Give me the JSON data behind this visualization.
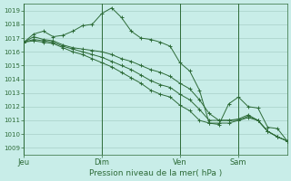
{
  "title": "",
  "xlabel": "Pression niveau de la mer( hPa )",
  "ylabel": "",
  "bg_color": "#c8ede8",
  "grid_color": "#a8cfc8",
  "line_color": "#2d6b38",
  "ylim": [
    1008.5,
    1019.5
  ],
  "yticks": [
    1009,
    1010,
    1011,
    1012,
    1013,
    1014,
    1015,
    1016,
    1017,
    1018,
    1019
  ],
  "xtick_labels": [
    "Jeu",
    "Dim",
    "Ven",
    "Sam"
  ],
  "xtick_positions": [
    0,
    8,
    16,
    22
  ],
  "total_points": 28,
  "series": [
    [
      1016.7,
      1017.3,
      1017.5,
      1017.1,
      1017.2,
      1017.5,
      1017.9,
      1018.0,
      1018.8,
      1019.2,
      1018.5,
      1017.5,
      1017.0,
      1016.9,
      1016.7,
      1016.4,
      1015.2,
      1014.6,
      1013.2,
      1010.8,
      1010.7,
      1012.2,
      1012.7,
      1012.0,
      1011.9,
      1010.5,
      1010.4,
      1009.5
    ],
    [
      1016.7,
      1017.1,
      1016.9,
      1016.8,
      1016.5,
      1016.3,
      1016.2,
      1016.1,
      1016.0,
      1015.8,
      1015.5,
      1015.3,
      1015.0,
      1014.7,
      1014.5,
      1014.2,
      1013.7,
      1013.3,
      1012.5,
      1011.5,
      1011.0,
      1011.0,
      1011.1,
      1011.4,
      1011.0,
      1010.2,
      1009.8,
      1009.5
    ],
    [
      1016.7,
      1016.9,
      1016.8,
      1016.7,
      1016.4,
      1016.2,
      1016.0,
      1015.8,
      1015.6,
      1015.3,
      1015.0,
      1014.7,
      1014.3,
      1013.9,
      1013.6,
      1013.4,
      1012.9,
      1012.5,
      1011.8,
      1011.0,
      1011.0,
      1011.0,
      1011.0,
      1011.3,
      1011.0,
      1010.2,
      1009.8,
      1009.5
    ],
    [
      1016.7,
      1016.8,
      1016.7,
      1016.6,
      1016.3,
      1016.0,
      1015.8,
      1015.5,
      1015.2,
      1014.9,
      1014.5,
      1014.1,
      1013.7,
      1013.2,
      1012.9,
      1012.7,
      1012.1,
      1011.7,
      1011.0,
      1010.8,
      1010.8,
      1010.8,
      1011.0,
      1011.2,
      1011.0,
      1010.2,
      1009.8,
      1009.5
    ]
  ]
}
